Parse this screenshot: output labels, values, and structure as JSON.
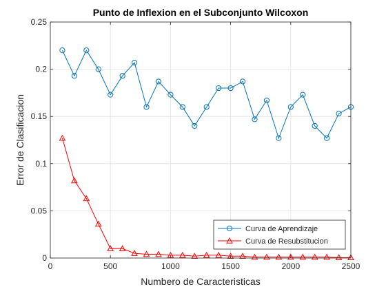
{
  "chart_data": {
    "type": "line",
    "title": "Punto de Inflexion en el Subconjunto Wilcoxon",
    "xlabel": "Numbero de Caracteristicas",
    "ylabel": "Error de Clasificacion",
    "xlim": [
      0,
      2500
    ],
    "ylim": [
      0,
      0.25
    ],
    "xticks": [
      0,
      500,
      1000,
      1500,
      2000,
      2500
    ],
    "xtick_labels": [
      "0",
      "500",
      "1000",
      "1500",
      "2000",
      "2500"
    ],
    "yticks": [
      0,
      0.05,
      0.1,
      0.15,
      0.2,
      0.25
    ],
    "ytick_labels": [
      "0",
      "0.05",
      "0.1",
      "0.15",
      "0.2",
      "0.25"
    ],
    "grid": true,
    "legend_position": "bottom-right",
    "x": [
      100,
      200,
      300,
      400,
      500,
      600,
      700,
      800,
      900,
      1000,
      1100,
      1200,
      1300,
      1400,
      1500,
      1600,
      1700,
      1800,
      1900,
      2000,
      2100,
      2200,
      2300,
      2400,
      2500
    ],
    "series": [
      {
        "name": "Curva de Aprendizaje",
        "color": "#0072BD",
        "marker": "circle",
        "values": [
          0.22,
          0.193,
          0.22,
          0.2,
          0.173,
          0.193,
          0.207,
          0.16,
          0.187,
          0.173,
          0.16,
          0.14,
          0.16,
          0.18,
          0.18,
          0.187,
          0.147,
          0.167,
          0.127,
          0.16,
          0.173,
          0.14,
          0.127,
          0.153,
          0.16
        ]
      },
      {
        "name": "Curva de Resubstitucion",
        "color": "#FF0000",
        "marker": "triangle",
        "values": [
          0.127,
          0.082,
          0.063,
          0.036,
          0.01,
          0.01,
          0.005,
          0.004,
          0.004,
          0.003,
          0.003,
          0.002,
          0.003,
          0.003,
          0.002,
          0.002,
          0.001,
          0.001,
          0.001,
          0.001,
          0.001,
          0.001,
          0.001,
          0.0005,
          0.0005
        ]
      }
    ]
  }
}
